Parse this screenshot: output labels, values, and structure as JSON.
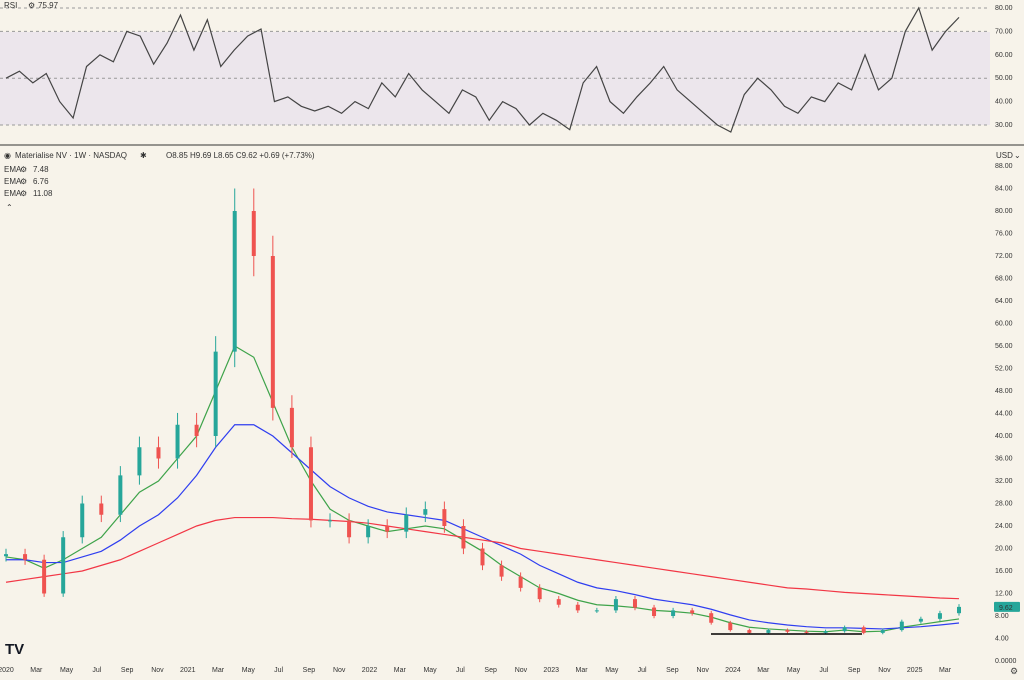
{
  "rsi_panel": {
    "label": "RSI",
    "value": "75.97",
    "levels": [
      "80.00",
      "70.00",
      "60.00",
      "50.00",
      "40.00",
      "30.00"
    ]
  },
  "price_panel": {
    "symbol_title": "Materialise NV · 1W · NASDAQ",
    "ohlc": "O8.85 H9.69 L8.65 C9.62 +0.69 (+7.73%)",
    "currency": "USD",
    "price_axis": [
      "88.00",
      "84.00",
      "80.00",
      "76.00",
      "72.00",
      "68.00",
      "64.00",
      "60.00",
      "56.00",
      "52.00",
      "48.00",
      "44.00",
      "40.00",
      "36.00",
      "32.00",
      "28.00",
      "24.00",
      "20.00",
      "16.00",
      "12.00",
      "8.00",
      "4.00",
      "0.0000"
    ],
    "current_price": "9.62",
    "indicators": [
      {
        "name": "EMA",
        "value": "7.48",
        "color": "#3ea34a"
      },
      {
        "name": "EMA",
        "value": "6.76",
        "color": "#2f3ef0"
      },
      {
        "name": "EMA",
        "value": "11.08",
        "color": "#f23645"
      }
    ]
  },
  "x_axis": [
    "2020",
    "Mar",
    "May",
    "Jul",
    "Sep",
    "Nov",
    "2021",
    "Mar",
    "May",
    "Jul",
    "Sep",
    "Nov",
    "2022",
    "Mar",
    "May",
    "Jul",
    "Sep",
    "Nov",
    "2023",
    "Mar",
    "May",
    "Jul",
    "Sep",
    "Nov",
    "2024",
    "Mar",
    "May",
    "Jul",
    "Sep",
    "Nov",
    "2025",
    "Mar"
  ],
  "logo_text": "TV",
  "colors": {
    "up": "#26a69a",
    "down": "#ef5350",
    "background": "#f7f3ea",
    "rsi_band": "#ece6ec"
  },
  "chart_data": [
    {
      "type": "line",
      "series": [
        {
          "name": "RSI",
          "values": [
            50,
            53,
            48,
            52,
            40,
            33,
            55,
            60,
            57,
            70,
            68,
            56,
            65,
            77,
            62,
            75,
            55,
            62,
            68,
            71,
            40,
            42,
            38,
            36,
            38,
            35,
            40,
            37,
            48,
            42,
            52,
            45,
            40,
            35,
            45,
            42,
            32,
            40,
            37,
            30,
            35,
            32,
            28,
            48,
            55,
            40,
            35,
            42,
            48,
            55,
            45,
            40,
            35,
            30,
            27,
            43,
            50,
            45,
            38,
            35,
            42,
            40,
            48,
            45,
            60,
            45,
            50,
            70,
            80,
            62,
            70,
            76
          ]
        }
      ],
      "ylim": [
        25,
        85
      ]
    },
    {
      "type": "line",
      "series": [
        {
          "name": "Close",
          "values": [
            19,
            18,
            12,
            22,
            28,
            26,
            33,
            38,
            36,
            42,
            40,
            55,
            80,
            72,
            45,
            38,
            25,
            25,
            22,
            24,
            23,
            26,
            27,
            24,
            20,
            17,
            15,
            13,
            11,
            10,
            9,
            9,
            11,
            9.5,
            8,
            9,
            8.5,
            6.8,
            5.5,
            5,
            5.5,
            5.2,
            5,
            5.3,
            6,
            5,
            5.5,
            7,
            7.5,
            8.5,
            9.62
          ]
        },
        {
          "name": "EMA 7.48",
          "values": [
            18.5,
            18,
            16.5,
            18,
            20,
            22,
            26,
            30,
            32,
            36,
            40,
            48,
            56,
            54,
            46,
            38,
            32,
            27,
            25,
            24,
            23,
            23.5,
            24,
            23.5,
            21.5,
            19.5,
            17,
            15,
            13,
            12,
            10.8,
            10,
            9.8,
            9.5,
            9,
            8.8,
            8.5,
            7.8,
            6.8,
            6,
            5.7,
            5.5,
            5.3,
            5.2,
            5.5,
            5.2,
            5.3,
            6,
            6.5,
            7,
            7.48
          ]
        },
        {
          "name": "EMA 6.76",
          "values": [
            18,
            18,
            17.5,
            17.5,
            18.5,
            19.5,
            21.5,
            24,
            26,
            29,
            33,
            38,
            42,
            42,
            40,
            37,
            34,
            31,
            29,
            27.5,
            26.5,
            26,
            25.5,
            25,
            23.5,
            22,
            20.5,
            19,
            17,
            15.5,
            14,
            13,
            12.5,
            11.8,
            11,
            10.5,
            10,
            9.2,
            8.2,
            7.3,
            6.8,
            6.4,
            6.1,
            5.9,
            5.9,
            5.8,
            5.7,
            5.9,
            6.1,
            6.4,
            6.76
          ]
        },
        {
          "name": "EMA 11.08",
          "values": [
            14,
            14.5,
            15,
            15.5,
            16,
            17,
            18,
            19.5,
            21,
            22.5,
            24,
            25,
            25.5,
            25.5,
            25.5,
            25.3,
            25.2,
            25,
            24.8,
            24.5,
            24,
            23.5,
            23,
            22.5,
            22,
            21.5,
            21,
            20,
            19.5,
            19,
            18.5,
            18,
            17.5,
            17,
            16.5,
            16,
            15.5,
            15,
            14.5,
            14,
            13.5,
            13,
            12.8,
            12.5,
            12.2,
            12,
            11.8,
            11.6,
            11.4,
            11.2,
            11.08
          ]
        }
      ],
      "ylim": [
        0,
        88
      ]
    }
  ]
}
